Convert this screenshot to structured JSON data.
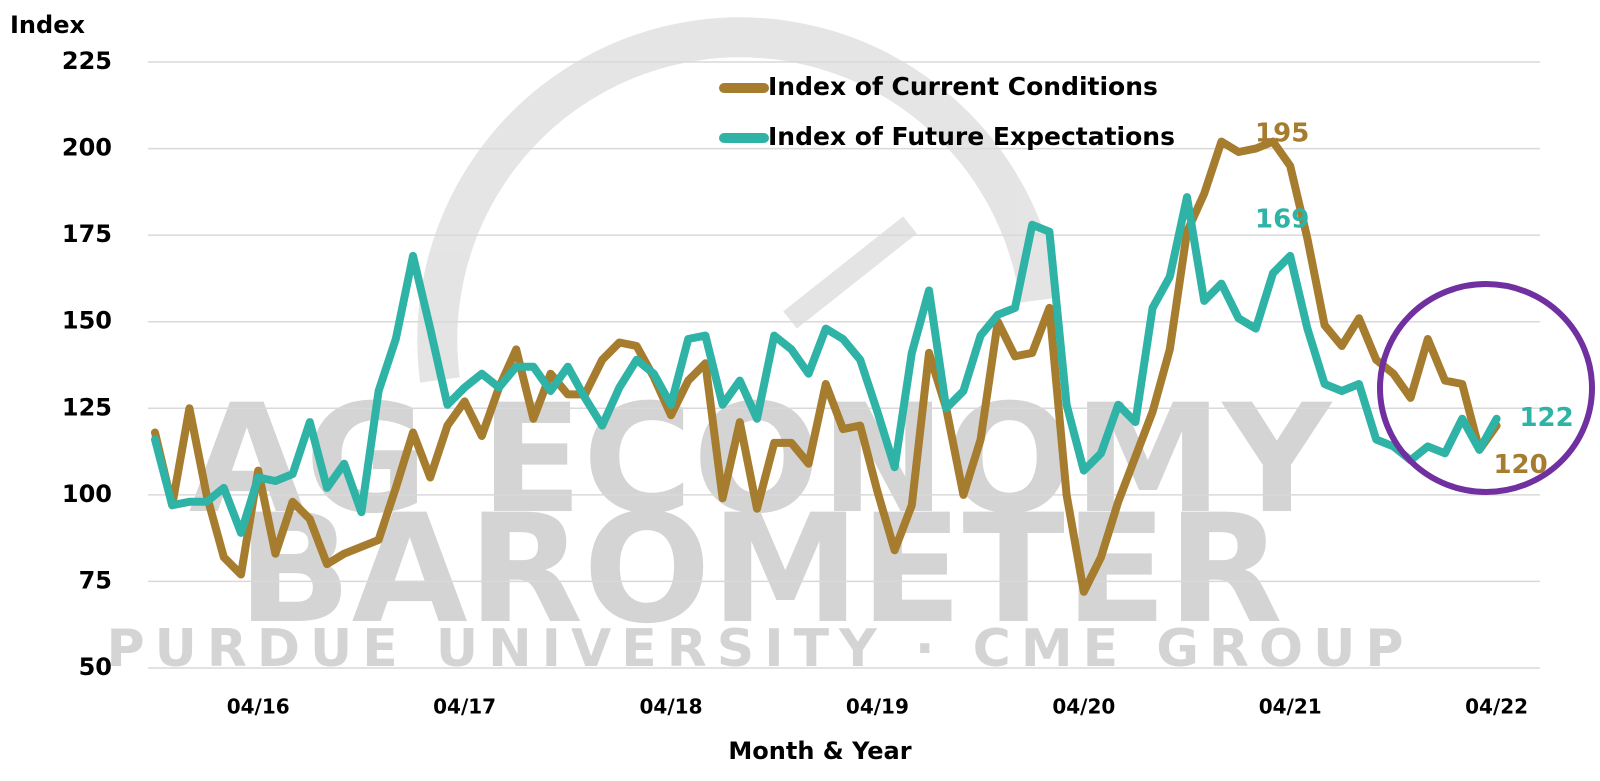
{
  "chart_data": {
    "type": "line",
    "y_label": "Index",
    "x_label": "Month & Year",
    "watermark": {
      "line1": "AG ECONOMY",
      "line2": "BAROMETER",
      "line3": "PURDUE UNIVERSITY  ·  CME GROUP"
    },
    "legend": "top-center",
    "grid": true,
    "ylim": [
      50,
      225
    ],
    "yticks": [
      50,
      75,
      100,
      125,
      150,
      175,
      200,
      225
    ],
    "categories": [
      null,
      null,
      null,
      null,
      null,
      null,
      "04/16",
      null,
      null,
      null,
      null,
      null,
      null,
      null,
      null,
      null,
      null,
      null,
      "04/17",
      null,
      null,
      null,
      null,
      null,
      null,
      null,
      null,
      null,
      null,
      null,
      "04/18",
      null,
      null,
      null,
      null,
      null,
      null,
      null,
      null,
      null,
      null,
      null,
      "04/19",
      null,
      null,
      null,
      null,
      null,
      null,
      null,
      null,
      null,
      null,
      null,
      "04/20",
      null,
      null,
      null,
      null,
      null,
      null,
      null,
      null,
      null,
      null,
      null,
      "04/21",
      null,
      null,
      null,
      null,
      null,
      null,
      null,
      null,
      null,
      null,
      null,
      "04/22"
    ],
    "series": [
      {
        "name": "Index of Current Conditions",
        "color": "#a67c2e",
        "values": [
          118,
          97,
          125,
          100,
          82,
          77,
          107,
          83,
          98,
          93,
          80,
          83,
          85,
          87,
          102,
          118,
          105,
          120,
          127,
          117,
          131,
          142,
          122,
          135,
          129,
          129,
          139,
          144,
          143,
          134,
          123,
          133,
          138,
          99,
          121,
          96,
          115,
          115,
          109,
          132,
          119,
          120,
          101,
          84,
          97,
          141,
          125,
          100,
          116,
          150,
          140,
          141,
          154,
          100,
          72,
          82,
          98,
          111,
          124,
          142,
          176,
          187,
          202,
          199,
          200,
          202,
          195,
          174,
          149,
          143,
          151,
          139,
          135,
          128,
          145,
          133,
          132,
          113,
          120
        ],
        "value_labels": [
          null,
          null,
          null,
          null,
          null,
          null,
          null,
          null,
          null,
          null,
          null,
          null,
          null,
          null,
          null,
          null,
          null,
          null,
          null,
          null,
          null,
          null,
          null,
          null,
          null,
          null,
          null,
          null,
          null,
          null,
          null,
          null,
          null,
          null,
          null,
          null,
          null,
          null,
          null,
          null,
          null,
          null,
          null,
          null,
          null,
          null,
          null,
          null,
          null,
          null,
          null,
          null,
          null,
          null,
          null,
          null,
          null,
          null,
          null,
          null,
          null,
          null,
          null,
          null,
          null,
          null,
          "195",
          null,
          null,
          null,
          null,
          null,
          null,
          null,
          null,
          null,
          null,
          null,
          "120"
        ]
      },
      {
        "name": "Index of Future Expectations",
        "color": "#2eb3a6",
        "values": [
          116,
          97,
          98,
          98,
          102,
          89,
          105,
          104,
          106,
          121,
          102,
          109,
          95,
          130,
          145,
          169,
          148,
          126,
          131,
          135,
          131,
          137,
          137,
          130,
          137,
          128,
          120,
          131,
          139,
          135,
          126,
          145,
          146,
          126,
          133,
          122,
          146,
          142,
          135,
          148,
          145,
          139,
          124,
          108,
          141,
          159,
          125,
          130,
          146,
          152,
          154,
          178,
          176,
          126,
          107,
          112,
          126,
          121,
          154,
          163,
          186,
          156,
          161,
          151,
          148,
          164,
          169,
          148,
          132,
          130,
          132,
          116,
          114,
          110,
          114,
          112,
          122,
          113,
          122
        ],
        "value_labels": [
          null,
          null,
          null,
          null,
          null,
          null,
          null,
          null,
          null,
          null,
          null,
          null,
          null,
          null,
          null,
          null,
          null,
          null,
          null,
          null,
          null,
          null,
          null,
          null,
          null,
          null,
          null,
          null,
          null,
          null,
          null,
          null,
          null,
          null,
          null,
          null,
          null,
          null,
          null,
          null,
          null,
          null,
          null,
          null,
          null,
          null,
          null,
          null,
          null,
          null,
          null,
          null,
          null,
          null,
          null,
          null,
          null,
          null,
          null,
          null,
          null,
          null,
          null,
          null,
          null,
          null,
          "169",
          null,
          null,
          null,
          null,
          null,
          null,
          null,
          null,
          null,
          null,
          null,
          "122"
        ]
      }
    ]
  }
}
